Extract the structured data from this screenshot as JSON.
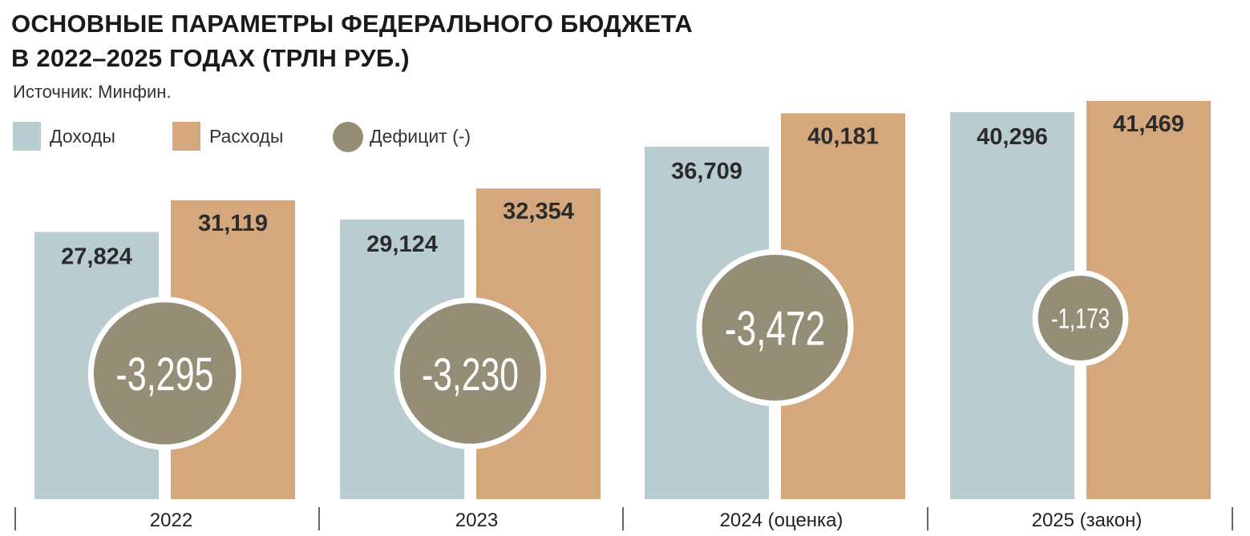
{
  "title_line1": "ОСНОВНЫЕ ПАРАМЕТРЫ ФЕДЕРАЛЬНОГО БЮДЖЕТА",
  "title_line2": "В 2022–2025 ГОДАХ (ТРЛН РУБ.)",
  "source": "Источник: Минфин.",
  "legend": [
    {
      "label": "Доходы",
      "color": "#b9cdd1",
      "shape": "square"
    },
    {
      "label": "Расходы",
      "color": "#d4a77d",
      "shape": "square"
    },
    {
      "label": "Дефицит (-)",
      "color": "#948e76",
      "shape": "circle"
    }
  ],
  "chart_data": {
    "type": "bar",
    "categories": [
      "2022",
      "2023",
      "2024 (оценка)",
      "2025 (закон)"
    ],
    "series": [
      {
        "name": "Доходы",
        "values": [
          27.824,
          29.124,
          36.709,
          40.296
        ],
        "labels": [
          "27,824",
          "29,124",
          "36,709",
          "40,296"
        ],
        "color": "#b9cdd1"
      },
      {
        "name": "Расходы",
        "values": [
          31.119,
          32.354,
          40.181,
          41.469
        ],
        "labels": [
          "31,119",
          "32,354",
          "40,181",
          "41,469"
        ],
        "color": "#d4a77d"
      },
      {
        "name": "Дефицит (-)",
        "values": [
          -3.295,
          -3.23,
          -3.472,
          -1.173
        ],
        "labels": [
          "-3,295",
          "-3,230",
          "-3,472",
          "-1,173"
        ],
        "color": "#948e76"
      }
    ],
    "ylim": [
      0,
      41.469
    ],
    "grid": false,
    "legend_position": "top-left"
  }
}
